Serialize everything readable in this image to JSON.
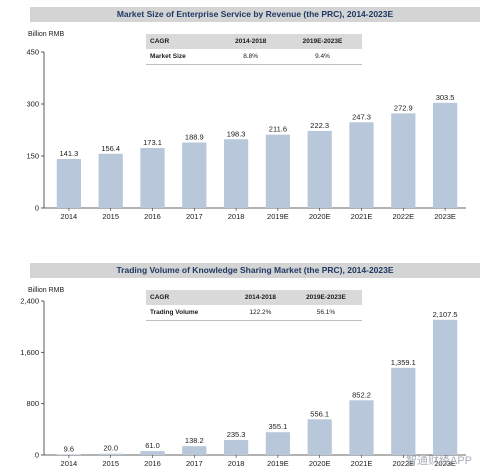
{
  "chart_data": [
    {
      "type": "bar",
      "title": "Market Size of Enterprise Service by Revenue (the PRC), 2014-2023E",
      "unit": "Billion RMB",
      "categories": [
        "2014",
        "2015",
        "2016",
        "2017",
        "2018",
        "2019E",
        "2020E",
        "2021E",
        "2022E",
        "2023E"
      ],
      "values": [
        141.3,
        156.4,
        173.1,
        188.9,
        198.3,
        211.6,
        222.3,
        247.3,
        272.9,
        303.5
      ],
      "value_labels": [
        "141.3",
        "156.4",
        "173.1",
        "188.9",
        "198.3",
        "211.6",
        "222.3",
        "247.3",
        "272.9",
        "303.5"
      ],
      "ylim": [
        0,
        450
      ],
      "yticks": [
        "0",
        "150",
        "300",
        "450"
      ],
      "bar_color": "#b8c7d9",
      "grid": false,
      "cagr_table": {
        "header": [
          "CAGR",
          "2014-2018",
          "2019E-2023E"
        ],
        "row": [
          "Market Size",
          "8.8%",
          "9.4%"
        ]
      }
    },
    {
      "type": "bar",
      "title": "Trading Volume of Knowledge Sharing Market (the PRC), 2014-2023E",
      "unit": "Billion RMB",
      "categories": [
        "2014",
        "2015",
        "2016",
        "2017",
        "2018",
        "2019E",
        "2020E",
        "2021E",
        "2022E",
        "2023E"
      ],
      "values": [
        9.6,
        20.0,
        61.0,
        138.2,
        235.3,
        355.1,
        556.1,
        852.2,
        1359.1,
        2107.5
      ],
      "value_labels": [
        "9.6",
        "20.0",
        "61.0",
        "138.2",
        "235.3",
        "355.1",
        "556.1",
        "852.2",
        "1,359.1",
        "2,107.5"
      ],
      "ylim": [
        0,
        2400
      ],
      "yticks": [
        "0",
        "800",
        "1,600",
        "2,400"
      ],
      "bar_color": "#b8c7d9",
      "grid": false,
      "cagr_table": {
        "header": [
          "CAGR",
          "2014-2018",
          "2019E-2023E"
        ],
        "row": [
          "Trading Volume",
          "122.2%",
          "56.1%"
        ]
      }
    }
  ],
  "watermark": "智通财经APP"
}
